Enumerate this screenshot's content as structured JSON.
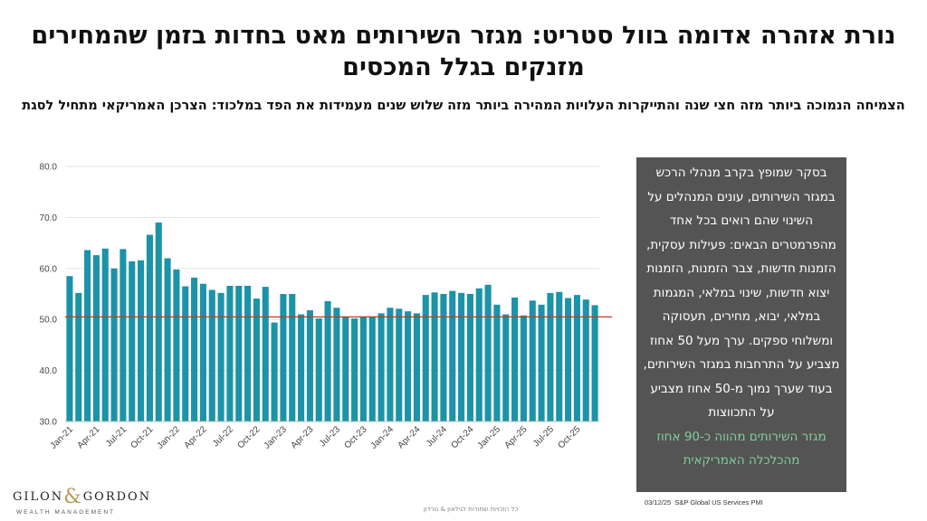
{
  "header": {
    "title": "נורת אזהרה אדומה בוול סטריט: מגזר השירותים מאט בחדות בזמן שהמחירים מזנקים בגלל המכסים",
    "subtitle": "הצמיחה הנמוכה ביותר מזה חצי שנה והתייקרות העלויות המהירה ביותר מזה שלוש שנים מעמידות את הפד במלכוד: הצרכן האמריקאי מתחיל לסגת"
  },
  "side_panel": {
    "text": "בסקר שמופץ בקרב מנהלי הרכש במגזר השירותים, עונים המנהלים על השינוי שהם רואים בכל אחד מהפרמטרים הבאים: פעילות עסקית, הזמנות חדשות, צבר הזמנות, הזמנות יצוא חדשות, שינוי במלאי, המגמות במלאי, יבוא, מחירים, תעסוקה ומשלוחי ספקים. ערך מעל 50 אחוז מצביע על התרחבות במגזר השירותים, בעוד שערך נמוך מ-50 אחוז מצביע על התכווצות",
    "highlight": "מגזר השירותים מהווה כ-90 אחוז מהכלכלה האמריקאית",
    "background": "#545454",
    "highlight_color": "#7fd09a"
  },
  "footer": {
    "date": "03/12/25",
    "source": "S&P Global US Services PMI",
    "copyright": "כל הזכויות שמורות לגילאון & גורדון",
    "logo_left": "GILON",
    "logo_amp": "&",
    "logo_right": "GORDON",
    "logo_sub": "WEALTH MANAGEMENT"
  },
  "chart_data": {
    "type": "bar",
    "title": "",
    "xlabel": "",
    "ylabel": "",
    "ylim": [
      30,
      80
    ],
    "y_ticks": [
      "30.0",
      "40.0",
      "50.0",
      "60.0",
      "70.0",
      "80.0"
    ],
    "reference_line": 50.5,
    "bar_color": "#1b93a8",
    "reference_line_color": "#c0392b",
    "grid": true,
    "categories": [
      "Jan-21",
      "Feb-21",
      "Mar-21",
      "Apr-21",
      "May-21",
      "Jun-21",
      "Jul-21",
      "Aug-21",
      "Sep-21",
      "Oct-21",
      "Nov-21",
      "Dec-21",
      "Jan-22",
      "Feb-22",
      "Mar-22",
      "Apr-22",
      "May-22",
      "Jun-22",
      "Jul-22",
      "Aug-22",
      "Sep-22",
      "Oct-22",
      "Nov-22",
      "Dec-22",
      "Jan-23",
      "Feb-23",
      "Mar-23",
      "Apr-23",
      "May-23",
      "Jun-23",
      "Jul-23",
      "Aug-23",
      "Sep-23",
      "Oct-23",
      "Nov-23",
      "Dec-23",
      "Jan-24",
      "Feb-24",
      "Mar-24",
      "Apr-24",
      "May-24",
      "Jun-24",
      "Jul-24",
      "Aug-24",
      "Sep-24",
      "Oct-24",
      "Nov-24",
      "Dec-24",
      "Jan-25",
      "Feb-25",
      "Mar-25",
      "Apr-25",
      "May-25",
      "Jun-25",
      "Jul-25",
      "Aug-25",
      "Sep-25",
      "Oct-25",
      "Nov-25",
      "Dec-25"
    ],
    "x_tick_labels": [
      "Jan-21",
      "Apr-21",
      "Jul-21",
      "Oct-21",
      "Jan-22",
      "Apr-22",
      "Jul-22",
      "Oct-22",
      "Jan-23",
      "Apr-23",
      "Jul-23",
      "Oct-23",
      "Jan-24",
      "Apr-24",
      "Jul-24",
      "Oct-24",
      "Jan-25",
      "Apr-25",
      "Jul-25",
      "Oct-25"
    ],
    "values": [
      58.5,
      55.2,
      63.6,
      62.6,
      63.9,
      60.0,
      63.8,
      61.4,
      61.6,
      66.6,
      69.0,
      62.0,
      59.8,
      56.5,
      58.2,
      57.0,
      55.8,
      55.2,
      56.6,
      56.6,
      56.6,
      54.1,
      56.4,
      49.4,
      55.0,
      55.0,
      51.0,
      51.8,
      50.2,
      53.6,
      52.3,
      50.6,
      50.2,
      50.6,
      50.6,
      51.2,
      52.3,
      52.1,
      51.6,
      51.2,
      54.8,
      55.3,
      55.0,
      55.6,
      55.2,
      55.0,
      56.1,
      56.8,
      52.9,
      51.0,
      54.3,
      50.8,
      53.7,
      52.9,
      55.2,
      55.4,
      54.2,
      54.8,
      53.9,
      52.8
    ]
  }
}
